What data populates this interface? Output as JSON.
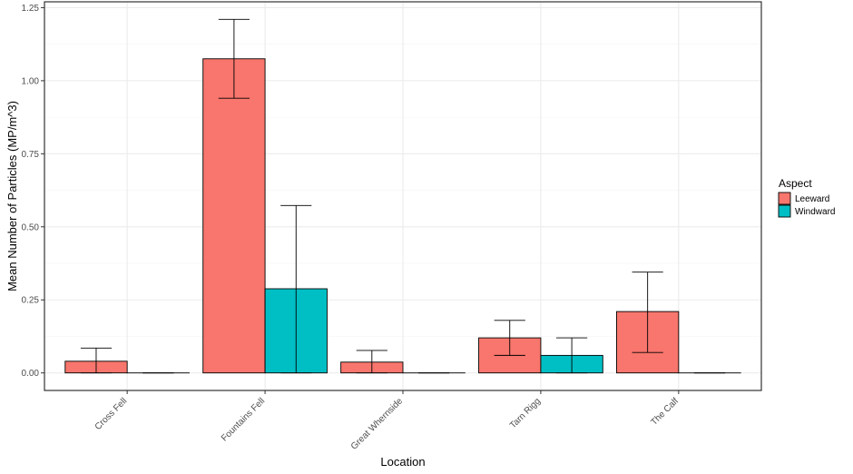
{
  "chart_data": {
    "type": "bar",
    "title": "",
    "xlabel": "Location",
    "ylabel": "Mean Number of Particles (MP/m^3)",
    "categories": [
      "Cross Fell",
      "Fountains Fell",
      "Great Whernside",
      "Tarn Rigg",
      "The Calf"
    ],
    "ylim": [
      -0.06,
      1.27
    ],
    "yticks": [
      0.0,
      0.25,
      0.5,
      0.75,
      1.0,
      1.25
    ],
    "ytick_labels": [
      "0.00",
      "0.25",
      "0.50",
      "0.75",
      "1.00",
      "1.25"
    ],
    "grid": true,
    "legend_title": "Aspect",
    "legend_position": "right",
    "series": [
      {
        "name": "Leeward",
        "color": "#F8766D",
        "values": [
          0.04,
          1.075,
          0.037,
          0.12,
          0.21
        ],
        "err_low": [
          0.0,
          0.94,
          0.0,
          0.06,
          0.07
        ],
        "err_high": [
          0.085,
          1.21,
          0.077,
          0.18,
          0.345
        ]
      },
      {
        "name": "Windward",
        "color": "#00BFC4",
        "values": [
          0.0,
          0.288,
          0.0,
          0.06,
          0.0
        ],
        "err_low": [
          0.0,
          0.0,
          0.0,
          0.0,
          0.0
        ],
        "err_high": [
          0.0,
          0.573,
          0.0,
          0.12,
          0.0
        ]
      }
    ]
  }
}
